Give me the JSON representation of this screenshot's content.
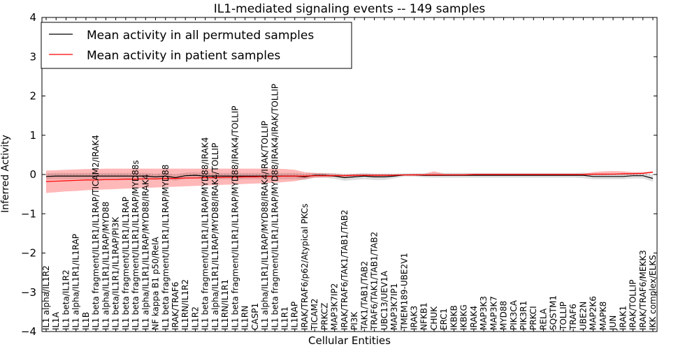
{
  "chart_data": {
    "type": "line",
    "title": "IL1-mediated signaling events -- 149 samples",
    "xlabel": "Cellular Entities",
    "ylabel": "Inferred Activity",
    "ylim": [
      -4,
      4
    ],
    "yticks": [
      -4,
      -3,
      -2,
      -1,
      0,
      1,
      2,
      3,
      4
    ],
    "ytick_labels": [
      "−4",
      "−3",
      "−2",
      "−1",
      "0",
      "1",
      "2",
      "3",
      "4"
    ],
    "legend": {
      "placement": "top-left",
      "entries": [
        {
          "label": "Mean activity in all permuted samples",
          "color": "#000000"
        },
        {
          "label": "Mean activity in patient samples",
          "color": "#ff0000"
        }
      ]
    },
    "categories": [
      "IL1 alpha/IL1R2",
      "IL1A",
      "IL1 beta/IL1R2",
      "IL1 alpha/IL1R1/IL1RAP",
      "IL1B",
      "IL1 beta fragment/IL1R1/IL1RAP/TICAM2/IRAK4",
      "IL1 alpha/IL1R1/IL1RAP/MYD88",
      "IL1 beta/IL1R1/IL1RAP/PI3K",
      "IL1 beta fragment/IL1R1/IL1RAP",
      "IL1 beta fragment/IL1R1/IL1RAP/MYD88s",
      "IL1 alpha/IL1R1/IL1RAP/MYD88/IRAK4",
      "NF kappa B1 p50/RelA",
      "IL1 beta fragment/IL1R1/IL1RAP/MYD88",
      "IRAK/TRAF6",
      "IL1RN/IL1R2",
      "IL1R2",
      "IL1 beta fragment/IL1R1/IL1RAP/MYD88/IRAK4",
      "IL1 alpha/IL1R1/IL1RAP/MYD88/IRAK4/TOLLIP",
      "IL1RN/IL1R1",
      "IL1 beta fragment/IL1R1/IL1RAP/MYD88/IRAK4/TOLLIP",
      "IL1RN",
      "CASP1",
      "IL1 alpha/IL1R1/IL1RAP/MYD88/IRAK4/IRAK/TOLLIP",
      "IL1 beta fragment/IL1R1/IL1RAP/MYD88/IRAK4/IRAK/TOLLIP",
      "IL1R1",
      "IL1RAP",
      "IRAK/TRAF6/p62/Atypical PKCs",
      "TICAM2",
      "PRKCZ",
      "MAP3K7IP2",
      "IRAK/TRAF6/TAK1/TAB1/TAB2",
      "PI3K",
      "TAK1/TAB1/TAB2",
      "TRAF6/TAK1/TAB1/TAB2",
      "UBC13/UEV1A",
      "MAP3K7IP1",
      "TMEM189-UBE2V1",
      "IRAK3",
      "NFKB1",
      "CHUK",
      "ERC1",
      "IKBKB",
      "IKBKG",
      "IRAK4",
      "MAP3K3",
      "MAP3K7",
      "MYD88",
      "PIK3CA",
      "PIK3R1",
      "PRKCI",
      "RELA",
      "SQSTM1",
      "TOLLIP",
      "TRAF6",
      "UBE2N",
      "MAP2K6",
      "MAPK8",
      "JUN",
      "IRAK1",
      "IRAK/TOLLIP",
      "IRAK/TRAF6/MEKK3",
      "IKK complex/ELKS"
    ],
    "series": [
      {
        "name": "Mean activity in all permuted samples",
        "color": "#000000",
        "values": [
          -0.05,
          -0.04,
          -0.04,
          -0.04,
          -0.04,
          -0.04,
          -0.04,
          -0.04,
          -0.04,
          -0.04,
          -0.04,
          -0.06,
          -0.04,
          -0.08,
          -0.03,
          -0.02,
          -0.04,
          -0.04,
          -0.04,
          -0.04,
          -0.04,
          -0.04,
          -0.04,
          -0.04,
          -0.04,
          -0.04,
          -0.06,
          -0.02,
          -0.02,
          -0.04,
          -0.08,
          -0.06,
          -0.04,
          -0.06,
          -0.06,
          -0.04,
          -0.01,
          -0.01,
          -0.02,
          -0.02,
          -0.02,
          -0.02,
          -0.02,
          -0.02,
          -0.02,
          -0.02,
          -0.02,
          -0.02,
          -0.02,
          -0.02,
          -0.02,
          -0.02,
          -0.02,
          -0.02,
          -0.02,
          -0.05,
          -0.05,
          -0.05,
          -0.05,
          -0.03,
          -0.03,
          -0.1
        ],
        "band": {
          "lower": [
            -0.13,
            -0.12,
            -0.12,
            -0.12,
            -0.12,
            -0.12,
            -0.12,
            -0.12,
            -0.12,
            -0.12,
            -0.12,
            -0.14,
            -0.12,
            -0.16,
            -0.11,
            -0.1,
            -0.12,
            -0.12,
            -0.12,
            -0.12,
            -0.12,
            -0.12,
            -0.12,
            -0.12,
            -0.12,
            -0.12,
            -0.14,
            -0.08,
            -0.08,
            -0.11,
            -0.16,
            -0.14,
            -0.12,
            -0.14,
            -0.14,
            -0.1,
            -0.05,
            -0.05,
            -0.07,
            -0.08,
            -0.08,
            -0.08,
            -0.08,
            -0.08,
            -0.08,
            -0.08,
            -0.08,
            -0.08,
            -0.08,
            -0.08,
            -0.08,
            -0.08,
            -0.08,
            -0.08,
            -0.09,
            -0.12,
            -0.12,
            -0.12,
            -0.12,
            -0.1,
            -0.1,
            -0.18
          ],
          "upper": [
            0.03,
            0.04,
            0.04,
            0.04,
            0.04,
            0.04,
            0.04,
            0.04,
            0.04,
            0.04,
            0.04,
            0.02,
            0.04,
            0.0,
            0.05,
            0.06,
            0.04,
            0.04,
            0.04,
            0.04,
            0.04,
            0.04,
            0.04,
            0.04,
            0.04,
            0.04,
            0.02,
            0.04,
            0.04,
            0.03,
            0.0,
            0.02,
            0.04,
            0.02,
            0.02,
            0.02,
            0.03,
            0.03,
            0.03,
            0.04,
            0.04,
            0.04,
            0.04,
            0.04,
            0.04,
            0.04,
            0.04,
            0.04,
            0.04,
            0.04,
            0.04,
            0.04,
            0.04,
            0.04,
            0.05,
            0.02,
            0.02,
            0.02,
            0.02,
            0.04,
            0.04,
            -0.02
          ]
        }
      },
      {
        "name": "Mean activity in patient samples",
        "color": "#ff0000",
        "values": [
          -0.18,
          -0.17,
          -0.16,
          -0.15,
          -0.14,
          -0.14,
          -0.13,
          -0.13,
          -0.12,
          -0.12,
          -0.11,
          -0.11,
          -0.1,
          -0.1,
          -0.09,
          -0.09,
          -0.08,
          -0.08,
          -0.07,
          -0.07,
          -0.06,
          -0.06,
          -0.05,
          -0.05,
          -0.04,
          -0.04,
          -0.04,
          -0.03,
          -0.03,
          -0.03,
          -0.03,
          -0.02,
          -0.02,
          -0.02,
          -0.02,
          -0.02,
          -0.01,
          -0.01,
          -0.01,
          -0.01,
          -0.01,
          -0.01,
          -0.01,
          0.0,
          0.0,
          0.0,
          0.0,
          0.0,
          0.0,
          0.0,
          0.0,
          0.0,
          0.0,
          0.0,
          0.0,
          0.01,
          0.01,
          0.01,
          0.02,
          0.02,
          0.03,
          0.06
        ],
        "band": {
          "lower": [
            -0.47,
            -0.45,
            -0.43,
            -0.42,
            -0.4,
            -0.39,
            -0.38,
            -0.37,
            -0.36,
            -0.35,
            -0.34,
            -0.33,
            -0.32,
            -0.31,
            -0.3,
            -0.29,
            -0.28,
            -0.27,
            -0.26,
            -0.25,
            -0.24,
            -0.23,
            -0.22,
            -0.21,
            -0.19,
            -0.17,
            -0.12,
            -0.08,
            -0.07,
            -0.06,
            -0.06,
            -0.05,
            -0.05,
            -0.05,
            -0.04,
            -0.04,
            -0.03,
            -0.03,
            -0.03,
            -0.03,
            -0.03,
            -0.02,
            -0.02,
            -0.02,
            -0.02,
            -0.02,
            -0.02,
            -0.02,
            -0.02,
            -0.02,
            -0.02,
            -0.02,
            -0.02,
            -0.02,
            -0.02,
            -0.02,
            -0.02,
            -0.01,
            -0.01,
            0.0,
            0.01,
            0.04
          ],
          "upper": [
            0.1,
            0.11,
            0.12,
            0.13,
            0.14,
            0.14,
            0.15,
            0.15,
            0.15,
            0.15,
            0.15,
            0.15,
            0.15,
            0.15,
            0.15,
            0.15,
            0.15,
            0.15,
            0.15,
            0.15,
            0.15,
            0.15,
            0.15,
            0.15,
            0.14,
            0.12,
            0.06,
            0.04,
            0.03,
            0.02,
            0.01,
            0.01,
            0.01,
            0.01,
            0.01,
            0.01,
            0.01,
            0.02,
            0.02,
            0.08,
            0.02,
            0.02,
            0.02,
            0.02,
            0.02,
            0.02,
            0.02,
            0.02,
            0.02,
            0.02,
            0.02,
            0.02,
            0.02,
            0.02,
            0.02,
            0.06,
            0.08,
            0.09,
            0.08,
            0.06,
            0.06,
            0.08
          ]
        }
      }
    ],
    "reference_line": {
      "y": 0,
      "style": "dotted",
      "color": "#888888"
    }
  }
}
